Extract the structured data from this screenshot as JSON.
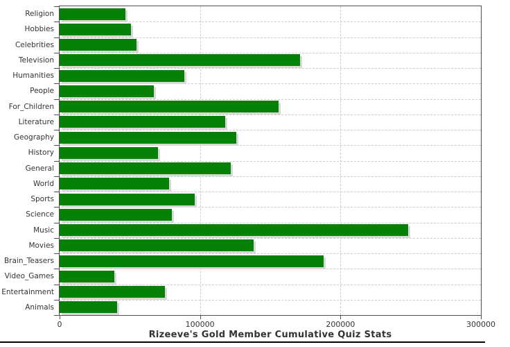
{
  "chart_data": {
    "type": "bar",
    "orientation": "horizontal",
    "title": "Rizeeve's Gold Member Cumulative Quiz Stats",
    "categories": [
      "Religion",
      "Hobbies",
      "Celebrities",
      "Television",
      "Humanities",
      "People",
      "For_Children",
      "Literature",
      "Geography",
      "History",
      "General",
      "World",
      "Sports",
      "Science",
      "Music",
      "Movies",
      "Brain_Teasers",
      "Video_Games",
      "Entertainment",
      "Animals"
    ],
    "values": [
      47000,
      51000,
      55000,
      171000,
      89000,
      67000,
      156000,
      118000,
      126000,
      70000,
      122000,
      78000,
      96000,
      80000,
      248000,
      138000,
      188000,
      39000,
      75000,
      41000
    ],
    "xlabel": "",
    "ylabel": "",
    "xlim": [
      0,
      300000
    ],
    "x_ticks": [
      0,
      100000,
      200000,
      300000
    ],
    "x_tick_labels": [
      "0",
      "100000",
      "200000",
      "300000"
    ],
    "vertical_gridlines_at": [
      100000,
      200000
    ],
    "grid_style": "dashed",
    "legend": "none",
    "colors": {
      "bar": "#068006",
      "bar_shadow": "#d8d8d8",
      "grid": "#cccccc",
      "axis": "#4d4d4d",
      "text": "#333333",
      "background": "#ffffff",
      "bottom_rule": "#000000"
    }
  }
}
